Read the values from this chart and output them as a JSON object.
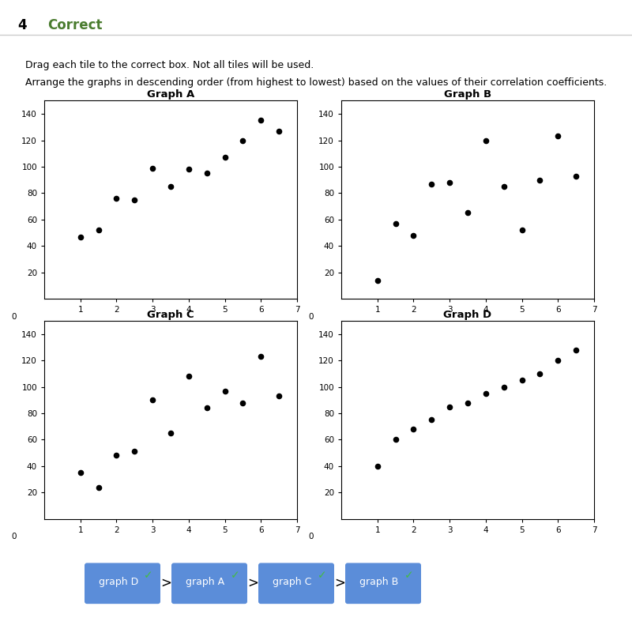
{
  "graph_A": {
    "x": [
      1.0,
      1.5,
      2.0,
      2.5,
      3.0,
      3.5,
      4.0,
      4.5,
      5.0,
      5.5,
      6.0,
      6.5
    ],
    "y": [
      47,
      52,
      76,
      75,
      99,
      85,
      98,
      95,
      107,
      120,
      135,
      127
    ],
    "title": "Graph A"
  },
  "graph_B": {
    "x": [
      1.0,
      1.5,
      2.0,
      2.5,
      3.0,
      3.5,
      4.0,
      4.5,
      5.0,
      5.5,
      6.0,
      6.5
    ],
    "y": [
      14,
      57,
      48,
      87,
      88,
      65,
      120,
      85,
      52,
      90,
      123,
      93
    ],
    "title": "Graph B"
  },
  "graph_C": {
    "x": [
      1.0,
      1.5,
      2.0,
      2.5,
      3.0,
      3.5,
      4.0,
      4.5,
      5.0,
      5.5,
      6.0,
      6.5
    ],
    "y": [
      35,
      24,
      48,
      51,
      90,
      65,
      108,
      84,
      97,
      88,
      123,
      93
    ],
    "title": "Graph C"
  },
  "graph_D": {
    "x": [
      1.0,
      1.5,
      2.0,
      2.5,
      3.0,
      3.5,
      4.0,
      4.5,
      5.0,
      5.5,
      6.0,
      6.5
    ],
    "y": [
      40,
      60,
      68,
      75,
      85,
      88,
      95,
      100,
      105,
      110,
      120,
      128
    ],
    "title": "Graph D"
  },
  "header_number": "4",
  "header_text": "Correct",
  "header_color": "#4a7c2f",
  "instruction1": "Drag each tile to the correct box. Not all tiles will be used.",
  "instruction2": "Arrange the graphs in descending order (from highest to lowest) based on the values of their correlation coefficients.",
  "answer_labels": [
    "graph D",
    "graph A",
    "graph C",
    "graph B"
  ],
  "answer_bg_color": "#5b8dd9",
  "answer_text_color": "#ffffff",
  "check_color": "#44bb44",
  "separator_color": "#cccccc",
  "xlim": [
    0,
    7
  ],
  "ylim": [
    0,
    150
  ],
  "xticks": [
    1,
    2,
    3,
    4,
    5,
    6,
    7
  ],
  "yticks": [
    20,
    40,
    60,
    80,
    100,
    120,
    140
  ]
}
